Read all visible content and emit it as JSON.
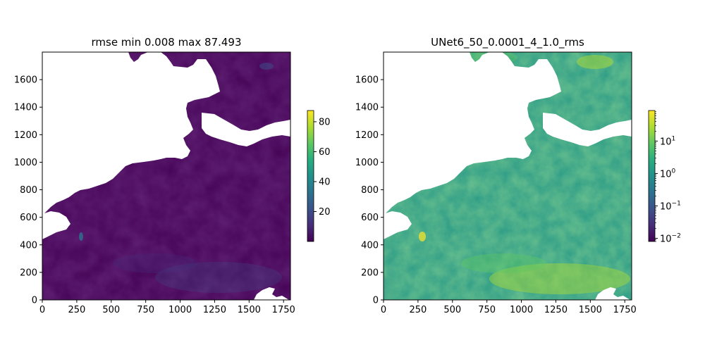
{
  "chart_data": [
    {
      "type": "heatmap",
      "title": "rmse min 0.008 max 87.493",
      "xlim": [
        0,
        1800
      ],
      "ylim": [
        0,
        1800
      ],
      "x_ticks": [
        0,
        250,
        500,
        750,
        1000,
        1250,
        1500,
        1750
      ],
      "y_ticks": [
        0,
        200,
        400,
        600,
        800,
        1000,
        1200,
        1400,
        1600
      ],
      "colormap": "viridis",
      "colorbar": {
        "scale": "linear",
        "range": [
          0.008,
          87.493
        ],
        "ticks": [
          20,
          40,
          60,
          80
        ],
        "tick_labels": [
          "20",
          "40",
          "60",
          "80"
        ]
      },
      "colors": {
        "background": "#440154",
        "mask": "#ffffff"
      }
    },
    {
      "type": "heatmap",
      "title": "UNet6_50_0.0001_4_1.0_rms",
      "xlim": [
        0,
        1800
      ],
      "ylim": [
        0,
        1800
      ],
      "x_ticks": [
        0,
        250,
        500,
        750,
        1000,
        1250,
        1500,
        1750
      ],
      "y_ticks": [
        0,
        200,
        400,
        600,
        800,
        1000,
        1200,
        1400,
        1600
      ],
      "colormap": "viridis",
      "colorbar": {
        "scale": "log",
        "range": [
          0.008,
          87.493
        ],
        "ticks": [
          0.01,
          0.1,
          1,
          10
        ],
        "tick_labels": [
          {
            "base": "10",
            "exp": "−2"
          },
          {
            "base": "10",
            "exp": "−1"
          },
          {
            "base": "10",
            "exp": "0"
          },
          {
            "base": "10",
            "exp": "1"
          }
        ]
      },
      "colors": {
        "background": "#2a9a86",
        "mask": "#ffffff"
      }
    }
  ]
}
